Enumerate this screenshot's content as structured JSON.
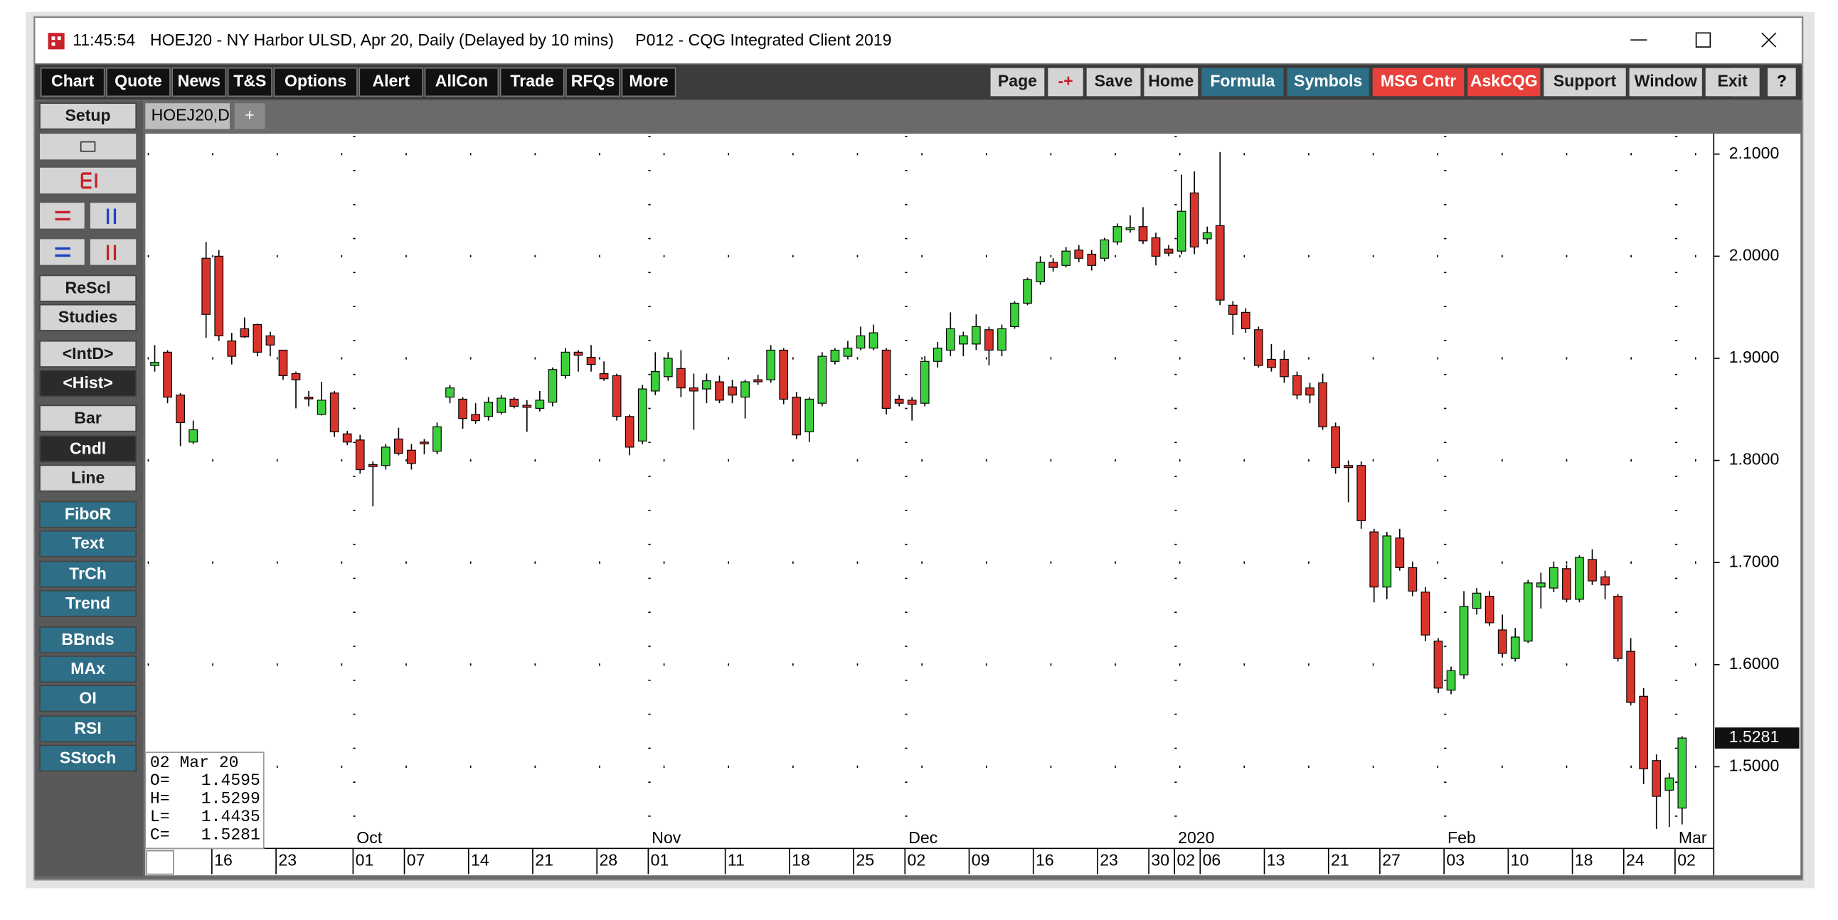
{
  "window": {
    "time": "11:45:54",
    "title": "HOEJ20 - NY Harbor ULSD, Apr 20, Daily (Delayed by 10 mins)",
    "app": "P012 - CQG Integrated Client 2019"
  },
  "toolbar_left": [
    "Chart",
    "Quote",
    "News",
    "T&S",
    "Options",
    "Alert",
    "AllCon",
    "Trade",
    "RFQs",
    "More"
  ],
  "toolbar_right": [
    {
      "label": "Page",
      "style": "light"
    },
    {
      "label": "-+",
      "style": "minus"
    },
    {
      "label": "Save",
      "style": "light"
    },
    {
      "label": "Home",
      "style": "light"
    },
    {
      "label": "Formula",
      "style": "teal"
    },
    {
      "label": "Symbols",
      "style": "teal"
    },
    {
      "label": "MSG Cntr",
      "style": "red"
    },
    {
      "label": "AskCQG",
      "style": "red"
    },
    {
      "label": "Support",
      "style": "light"
    },
    {
      "label": "Window",
      "style": "light"
    },
    {
      "label": "Exit",
      "style": "light"
    }
  ],
  "help": "?",
  "side_buttons": [
    {
      "label": "Setup",
      "style": "light"
    },
    {
      "label": "ReScl",
      "style": "light"
    },
    {
      "label": "Studies",
      "style": "light"
    },
    {
      "label": "<IntD>",
      "style": "light"
    },
    {
      "label": "<Hist>",
      "style": "dark"
    },
    {
      "label": "Bar",
      "style": "light"
    },
    {
      "label": "Cndl",
      "style": "dark"
    },
    {
      "label": "Line",
      "style": "light"
    },
    {
      "label": "FiboR",
      "style": "teal"
    },
    {
      "label": "Text",
      "style": "teal"
    },
    {
      "label": "TrCh",
      "style": "teal"
    },
    {
      "label": "Trend",
      "style": "teal"
    },
    {
      "label": "BBnds",
      "style": "teal"
    },
    {
      "label": "MAx",
      "style": "teal"
    },
    {
      "label": "OI",
      "style": "teal"
    },
    {
      "label": "RSI",
      "style": "teal"
    },
    {
      "label": "SStoch",
      "style": "teal"
    }
  ],
  "tab": "HOEJ20,D",
  "tab_add": "+",
  "info_box": {
    "date": "02 Mar 20",
    "keys": [
      "O=",
      "H=",
      "L=",
      "C="
    ]
  },
  "chart_data": {
    "type": "candlestick",
    "up_color": "#3ccf3c",
    "down_color": "#d9342b",
    "grid": true,
    "ylim": [
      1.42,
      2.12
    ],
    "yticks": [
      {
        "value": 1.5,
        "label": "1.5000"
      },
      {
        "value": 1.6,
        "label": "1.6000"
      },
      {
        "value": 1.7,
        "label": "1.7000"
      },
      {
        "value": 1.8,
        "label": "1.8000"
      },
      {
        "value": 1.9,
        "label": "1.9000"
      },
      {
        "value": 2.0,
        "label": "2.0000"
      },
      {
        "value": 2.1,
        "label": "2.1000"
      }
    ],
    "categories": [
      null,
      null,
      null,
      null,
      null,
      "16",
      null,
      null,
      null,
      null,
      "23",
      null,
      null,
      null,
      null,
      null,
      "01",
      null,
      null,
      null,
      "07",
      null,
      null,
      null,
      null,
      "14",
      null,
      null,
      null,
      null,
      "21",
      null,
      null,
      null,
      null,
      "28",
      null,
      null,
      null,
      "01",
      null,
      null,
      null,
      null,
      null,
      "11",
      null,
      null,
      null,
      null,
      "18",
      null,
      null,
      null,
      null,
      "25",
      null,
      null,
      null,
      "02",
      null,
      null,
      null,
      null,
      "09",
      null,
      null,
      null,
      null,
      "16",
      null,
      null,
      null,
      null,
      "23",
      null,
      null,
      null,
      "30",
      null,
      "02",
      null,
      "06",
      null,
      null,
      null,
      null,
      "13",
      null,
      null,
      null,
      null,
      "21",
      null,
      null,
      null,
      "27",
      null,
      null,
      null,
      null,
      "03",
      null,
      null,
      null,
      null,
      "10",
      null,
      null,
      null,
      null,
      "18",
      null,
      null,
      null,
      "24",
      null,
      null,
      null,
      "02"
    ],
    "months": [
      null,
      null,
      null,
      null,
      null,
      null,
      null,
      null,
      null,
      null,
      null,
      null,
      null,
      null,
      null,
      null,
      "Oct",
      null,
      null,
      null,
      null,
      null,
      null,
      null,
      null,
      null,
      null,
      null,
      null,
      null,
      null,
      null,
      null,
      null,
      null,
      null,
      null,
      null,
      null,
      "Nov",
      null,
      null,
      null,
      null,
      null,
      null,
      null,
      null,
      null,
      null,
      null,
      null,
      null,
      null,
      null,
      null,
      null,
      null,
      null,
      "Dec",
      null,
      null,
      null,
      null,
      null,
      null,
      null,
      null,
      null,
      null,
      null,
      null,
      null,
      null,
      null,
      null,
      null,
      null,
      null,
      null,
      "2020",
      null,
      null,
      null,
      null,
      null,
      null,
      null,
      null,
      null,
      null,
      null,
      null,
      null,
      null,
      null,
      null,
      null,
      null,
      null,
      null,
      "Feb",
      null,
      null,
      null,
      null,
      null,
      null,
      null,
      null,
      null,
      null,
      null,
      null,
      null,
      null,
      null,
      null,
      null,
      "Mar"
    ],
    "open": [
      1.893,
      1.906,
      1.864,
      1.818,
      1.998,
      2.0,
      1.917,
      1.929,
      1.933,
      1.922,
      1.908,
      1.885,
      1.862,
      1.845,
      1.866,
      1.826,
      1.82,
      1.796,
      1.795,
      1.821,
      1.81,
      1.818,
      1.809,
      1.862,
      1.86,
      1.845,
      1.843,
      1.847,
      1.86,
      1.854,
      1.851,
      1.857,
      1.883,
      1.906,
      1.901,
      1.885,
      1.883,
      1.843,
      1.819,
      1.868,
      1.882,
      1.89,
      1.871,
      1.87,
      1.877,
      1.872,
      1.862,
      1.879,
      1.879,
      1.908,
      1.862,
      1.828,
      1.856,
      1.897,
      1.902,
      1.91,
      1.91,
      1.908,
      1.86,
      1.859,
      1.856,
      1.897,
      1.908,
      1.914,
      1.914,
      1.928,
      1.908,
      1.931,
      1.954,
      1.975,
      1.994,
      1.991,
      2.006,
      2.002,
      1.998,
      2.014,
      2.026,
      2.029,
      2.018,
      2.007,
      2.005,
      2.062,
      2.017,
      2.03,
      1.952,
      1.945,
      1.928,
      1.899,
      1.899,
      1.883,
      1.871,
      1.876,
      1.833,
      1.795,
      1.795,
      1.73,
      1.676,
      1.724,
      1.695,
      1.671,
      1.623,
      1.575,
      1.59,
      1.655,
      1.667,
      1.634,
      1.606,
      1.623,
      1.676,
      1.675,
      1.694,
      1.664,
      1.703,
      1.686,
      1.667,
      1.613,
      1.569,
      1.506,
      1.477,
      1.4595
    ],
    "high": [
      1.913,
      1.908,
      1.866,
      1.839,
      2.014,
      2.006,
      1.925,
      1.94,
      1.934,
      1.926,
      1.908,
      1.887,
      1.868,
      1.877,
      1.868,
      1.829,
      1.825,
      1.799,
      1.816,
      1.832,
      1.816,
      1.821,
      1.837,
      1.874,
      1.862,
      1.856,
      1.862,
      1.864,
      1.862,
      1.859,
      1.868,
      1.891,
      1.91,
      1.908,
      1.913,
      1.897,
      1.885,
      1.845,
      1.874,
      1.906,
      1.906,
      1.908,
      1.885,
      1.885,
      1.883,
      1.879,
      1.879,
      1.884,
      1.913,
      1.91,
      1.867,
      1.862,
      1.906,
      1.91,
      1.917,
      1.931,
      1.933,
      1.91,
      1.864,
      1.862,
      1.902,
      1.916,
      1.945,
      1.926,
      1.943,
      1.931,
      1.933,
      1.956,
      1.979,
      2.0,
      1.998,
      2.009,
      2.011,
      2.006,
      2.018,
      2.032,
      2.04,
      2.048,
      2.023,
      2.011,
      2.08,
      2.083,
      2.029,
      2.102,
      1.956,
      1.949,
      1.931,
      1.914,
      1.908,
      1.887,
      1.876,
      1.885,
      1.837,
      1.8,
      1.799,
      1.733,
      1.73,
      1.733,
      1.701,
      1.676,
      1.626,
      1.598,
      1.672,
      1.675,
      1.672,
      1.649,
      1.636,
      1.683,
      1.69,
      1.701,
      1.698,
      1.707,
      1.713,
      1.692,
      1.669,
      1.626,
      1.577,
      1.512,
      1.494,
      1.5299
    ],
    "low": [
      1.887,
      1.856,
      1.814,
      1.816,
      1.92,
      1.917,
      1.894,
      1.92,
      1.902,
      1.902,
      1.879,
      1.851,
      1.853,
      1.844,
      1.823,
      1.815,
      1.787,
      1.755,
      1.791,
      1.805,
      1.791,
      1.806,
      1.806,
      1.856,
      1.831,
      1.836,
      1.839,
      1.845,
      1.851,
      1.828,
      1.848,
      1.853,
      1.88,
      1.887,
      1.887,
      1.878,
      1.839,
      1.805,
      1.816,
      1.864,
      1.878,
      1.862,
      1.83,
      1.856,
      1.856,
      1.856,
      1.841,
      1.874,
      1.876,
      1.855,
      1.821,
      1.818,
      1.853,
      1.894,
      1.899,
      1.908,
      1.908,
      1.845,
      1.853,
      1.839,
      1.853,
      1.891,
      1.902,
      1.902,
      1.908,
      1.893,
      1.902,
      1.929,
      1.952,
      1.972,
      1.985,
      1.989,
      1.994,
      1.986,
      1.995,
      2.011,
      2.023,
      2.012,
      1.991,
      2.0,
      2.002,
      2.002,
      2.012,
      1.952,
      1.923,
      1.925,
      1.891,
      1.887,
      1.876,
      1.86,
      1.856,
      1.83,
      1.787,
      1.759,
      1.733,
      1.661,
      1.664,
      1.692,
      1.667,
      1.623,
      1.572,
      1.571,
      1.586,
      1.649,
      1.638,
      1.607,
      1.603,
      1.621,
      1.655,
      1.671,
      1.661,
      1.661,
      1.678,
      1.664,
      1.603,
      1.56,
      1.483,
      1.439,
      1.441,
      1.4435
    ],
    "close": [
      1.896,
      1.862,
      1.837,
      1.83,
      1.943,
      1.922,
      1.902,
      1.921,
      1.906,
      1.913,
      1.883,
      1.879,
      1.861,
      1.859,
      1.828,
      1.818,
      1.791,
      1.794,
      1.813,
      1.807,
      1.797,
      1.817,
      1.833,
      1.871,
      1.841,
      1.839,
      1.857,
      1.861,
      1.853,
      1.852,
      1.859,
      1.889,
      1.906,
      1.903,
      1.894,
      1.88,
      1.843,
      1.813,
      1.87,
      1.887,
      1.9,
      1.871,
      1.868,
      1.878,
      1.859,
      1.864,
      1.877,
      1.877,
      1.908,
      1.86,
      1.825,
      1.86,
      1.902,
      1.908,
      1.91,
      1.922,
      1.925,
      1.851,
      1.856,
      1.855,
      1.897,
      1.91,
      1.929,
      1.922,
      1.931,
      1.908,
      1.929,
      1.954,
      1.977,
      1.994,
      1.989,
      2.005,
      1.998,
      1.991,
      2.016,
      2.029,
      2.028,
      2.015,
      2.0,
      2.003,
      2.044,
      2.009,
      2.023,
      1.957,
      1.943,
      1.929,
      1.893,
      1.891,
      1.882,
      1.864,
      1.864,
      1.833,
      1.793,
      1.793,
      1.741,
      1.676,
      1.726,
      1.695,
      1.672,
      1.629,
      1.577,
      1.594,
      1.657,
      1.67,
      1.641,
      1.611,
      1.627,
      1.68,
      1.68,
      1.695,
      1.664,
      1.705,
      1.682,
      1.678,
      1.606,
      1.563,
      1.498,
      1.471,
      1.489,
      1.5281
    ]
  }
}
